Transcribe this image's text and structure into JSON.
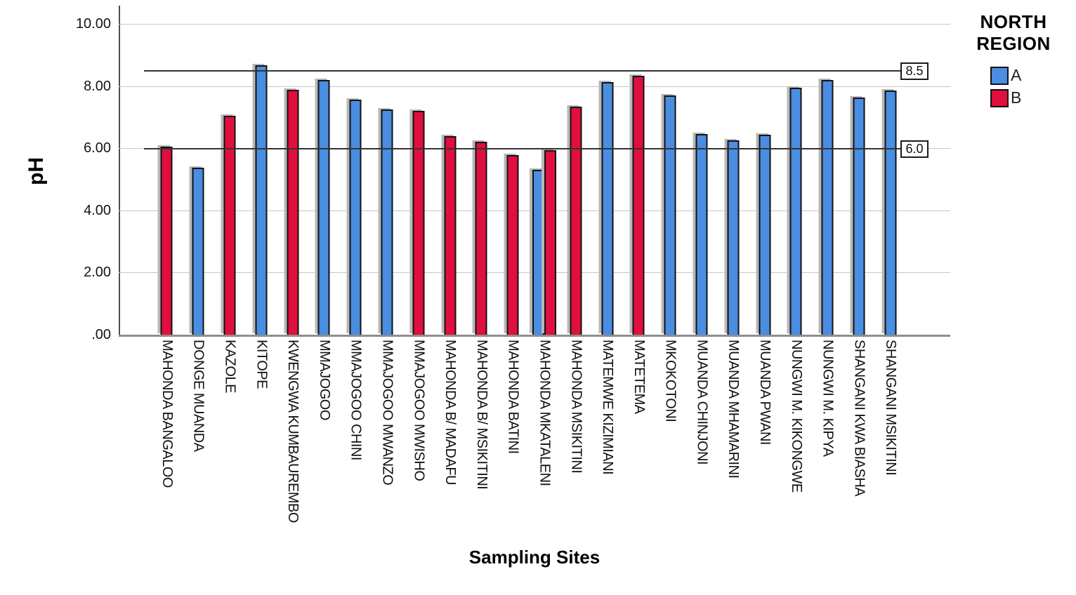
{
  "chart_data": {
    "type": "bar",
    "title": "",
    "xlabel": "Sampling Sites",
    "ylabel": "pH",
    "axis": {
      "y_tick_labels": [
        "10.00",
        "8.00",
        "6.00",
        "4.00",
        "2.00",
        ".00"
      ],
      "y_tick_values": [
        10,
        8,
        6,
        4,
        2,
        0
      ],
      "ylim": [
        0,
        10.6
      ],
      "gridlines_at": [
        2,
        4,
        6,
        8,
        10
      ],
      "grid": "horizontal"
    },
    "legend": {
      "title": "NORTH REGION",
      "position": "top-right",
      "entries": [
        {
          "label": "A",
          "color": "#4A8DE2"
        },
        {
          "label": "B",
          "color": "#E00F3D"
        }
      ]
    },
    "reference_lines": [
      {
        "value": 8.5,
        "label": "8.5"
      },
      {
        "value": 6.0,
        "label": "6.0"
      }
    ],
    "categories": [
      "MAHONDA BANGALOO",
      "DONGE MUANDA",
      "KAZOLE",
      "KITOPE",
      "KWENGWA KUMBAUREMBO",
      "MMAJOGOO",
      "MMAJOGOO CHINI",
      "MMAJOGOO MWANZO",
      "MMAJOGOO MWISHO",
      "MAHONDA B/ MADAFU",
      "MAHONDA B/ MSIKITINI",
      "MAHONDA BATINI",
      "MAHONDA MKATALENI",
      "MAHONDA MSIKITINI",
      "MATEMWE KIZIMIANI",
      "MATETEMA",
      "MKOKOTONI",
      "MUANDA CHINJONI",
      "MUANDA MHAMARINI",
      "MUANDA PWANI",
      "NUNGWI M. KIKONGWE",
      "NUNGWI M. KIPYA",
      "SHANGANI KWA BIASHA",
      "SHANGANI MSIKITINI"
    ],
    "series": [
      {
        "name": "A",
        "color": "#4A8DE2",
        "values": [
          null,
          5.33,
          null,
          8.62,
          null,
          8.15,
          7.52,
          7.19,
          null,
          null,
          null,
          null,
          5.27,
          null,
          8.07,
          null,
          7.65,
          6.4,
          6.21,
          6.38,
          7.89,
          8.16,
          7.58,
          7.81
        ]
      },
      {
        "name": "B",
        "color": "#E00F3D",
        "values": [
          6.0,
          null,
          7.0,
          null,
          7.84,
          null,
          null,
          null,
          7.16,
          6.35,
          6.17,
          5.73,
          5.89,
          7.3,
          null,
          8.29,
          null,
          null,
          null,
          null,
          null,
          null,
          null,
          null
        ]
      }
    ]
  },
  "style_colors": {
    "bar_blue": "#4A8DE2",
    "bar_red": "#E00F3D",
    "bar_border": "#121212",
    "gridline": "#C6C6C6",
    "reference_line": "#333333",
    "x_axis": "#8E8E8E",
    "y_axis": "#4F4F4F",
    "background": "#FFFFFF"
  }
}
